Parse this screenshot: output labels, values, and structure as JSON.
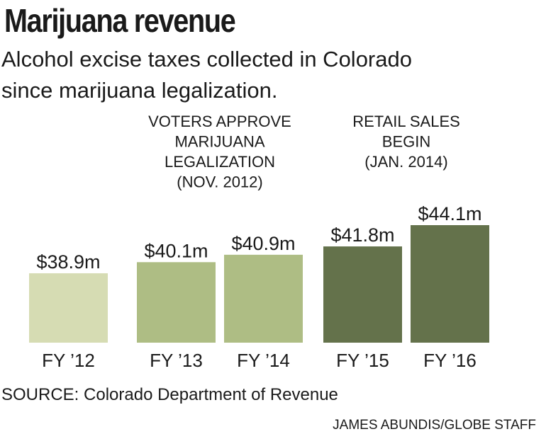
{
  "title": "Marijuana revenue",
  "subtitle_line1": "Alcohol excise taxes collected in Colorado",
  "subtitle_line2": "since marijuana legalization.",
  "source": "SOURCE: Colorado Department of Revenue",
  "credit": "JAMES ABUNDIS/GLOBE STAFF",
  "colors": {
    "pre_legalization": "#d6dcb3",
    "post_vote": "#aebd84",
    "retail_sales": "#64724b",
    "text": "#1a1a1a"
  },
  "chart_data": {
    "type": "bar",
    "categories": [
      "FY ’12",
      "FY ’13",
      "FY ’14",
      "FY ’15",
      "FY ’16"
    ],
    "values": [
      38.9,
      40.1,
      40.9,
      41.8,
      44.1
    ],
    "value_labels": [
      "$38.9m",
      "$40.1m",
      "$40.9m",
      "$41.8m",
      "$44.1m"
    ],
    "bar_colors": [
      "#d6dcb3",
      "#aebd84",
      "#aebd84",
      "#64724b",
      "#64724b"
    ],
    "title": "",
    "xlabel": "",
    "ylabel": "",
    "ylim": [
      0,
      46
    ],
    "grid": false,
    "annotations": [
      {
        "lines": [
          "VOTERS APPROVE",
          "MARIJUANA",
          "LEGALIZATION",
          "(NOV. 2012)"
        ],
        "spans": [
          1,
          2
        ]
      },
      {
        "lines": [
          "RETAIL SALES",
          "BEGIN",
          "(JAN. 2014)"
        ],
        "spans": [
          3,
          4
        ]
      }
    ]
  }
}
